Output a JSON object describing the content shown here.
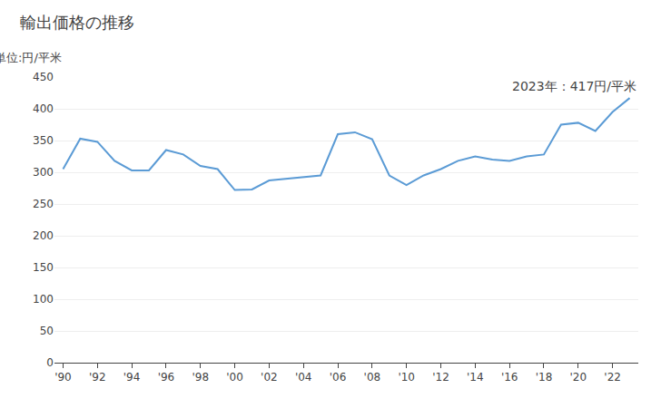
{
  "chart_data": {
    "type": "line",
    "title": "輸出価格の推移",
    "ylabel": "単位:円/平米",
    "annotation": "2023年：417円/平米",
    "x": [
      1990,
      1991,
      1992,
      1993,
      1994,
      1995,
      1996,
      1997,
      1998,
      1999,
      2000,
      2001,
      2002,
      2003,
      2004,
      2005,
      2006,
      2007,
      2008,
      2009,
      2010,
      2011,
      2012,
      2013,
      2014,
      2015,
      2016,
      2017,
      2018,
      2019,
      2020,
      2021,
      2022,
      2023
    ],
    "values": [
      305,
      353,
      348,
      318,
      303,
      303,
      335,
      328,
      310,
      305,
      272,
      273,
      287,
      290,
      293,
      295,
      360,
      363,
      352,
      295,
      280,
      295,
      305,
      318,
      325,
      320,
      318,
      325,
      328,
      375,
      378,
      365,
      395,
      417
    ],
    "color": "#5b9bd5",
    "xlim": [
      1989.5,
      2023.5
    ],
    "xticks": [
      {
        "value": 1990,
        "label": "'90"
      },
      {
        "value": 1992,
        "label": "'92"
      },
      {
        "value": 1994,
        "label": "'94"
      },
      {
        "value": 1996,
        "label": "'96"
      },
      {
        "value": 1998,
        "label": "'98"
      },
      {
        "value": 2000,
        "label": "'00"
      },
      {
        "value": 2002,
        "label": "'02"
      },
      {
        "value": 2004,
        "label": "'04"
      },
      {
        "value": 2006,
        "label": "'06"
      },
      {
        "value": 2008,
        "label": "'08"
      },
      {
        "value": 2010,
        "label": "'10"
      },
      {
        "value": 2012,
        "label": "'12"
      },
      {
        "value": 2014,
        "label": "'14"
      },
      {
        "value": 2016,
        "label": "'16"
      },
      {
        "value": 2018,
        "label": "'18"
      },
      {
        "value": 2020,
        "label": "'20"
      },
      {
        "value": 2022,
        "label": "'22"
      }
    ],
    "ylim": [
      0,
      450
    ],
    "yticks": [
      0,
      50,
      100,
      150,
      200,
      250,
      300,
      350,
      400,
      450
    ],
    "grid": "y"
  }
}
